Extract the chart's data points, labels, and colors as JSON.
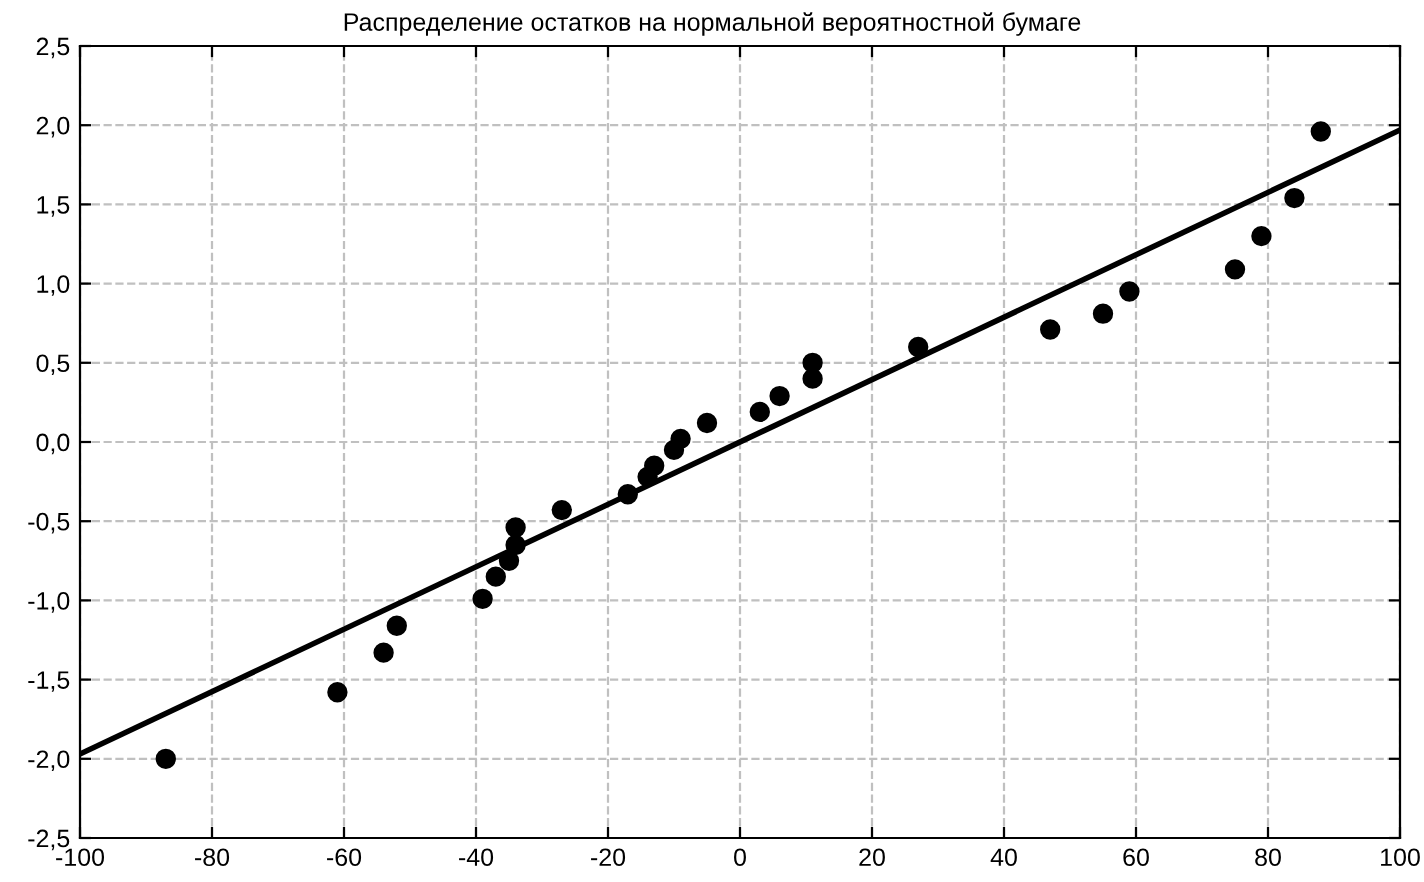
{
  "chart_data": {
    "type": "scatter",
    "title": "Распределение остатков на нормальной вероятностной бумаге",
    "series": [
      {
        "color": "#000000",
        "marker": "circle",
        "x": [
          -87,
          -61,
          -54,
          -52,
          -39,
          -37,
          -35,
          -34,
          -34,
          -27,
          -17,
          -14,
          -13,
          -10,
          -9,
          -5,
          3,
          6,
          11,
          11,
          27,
          47,
          55,
          59,
          75,
          79,
          84,
          88
        ],
        "values": [
          -2.0,
          -1.58,
          -1.33,
          -1.16,
          -0.99,
          -0.85,
          -0.75,
          -0.65,
          -0.54,
          -0.43,
          -0.33,
          -0.22,
          -0.15,
          -0.05,
          0.02,
          0.12,
          0.19,
          0.29,
          0.4,
          0.5,
          0.6,
          0.71,
          0.81,
          0.95,
          1.09,
          1.3,
          1.54,
          1.96
        ]
      },
      {
        "type": "line",
        "color": "#000000",
        "marker": "none",
        "line_style": "solid",
        "x": [
          -100,
          100
        ],
        "values": [
          -1.97,
          1.97
        ]
      }
    ],
    "xlim": [
      -100,
      100
    ],
    "ylim": [
      -2.5,
      2.5
    ],
    "xticks": [
      -100,
      -80,
      -60,
      -40,
      -20,
      0,
      20,
      40,
      60,
      80,
      100
    ],
    "yticks": [
      {
        "value": -2.5,
        "label": "-2,5"
      },
      {
        "value": -2.0,
        "label": "-2,0"
      },
      {
        "value": -1.5,
        "label": "-1,5"
      },
      {
        "value": -1.0,
        "label": "-1,0"
      },
      {
        "value": -0.5,
        "label": "-0,5"
      },
      {
        "value": 0.0,
        "label": "0,0"
      },
      {
        "value": 0.5,
        "label": "0,5"
      },
      {
        "value": 1.0,
        "label": "1,0"
      },
      {
        "value": 1.5,
        "label": "1,5"
      },
      {
        "value": 2.0,
        "label": "2,0"
      },
      {
        "value": 2.5,
        "label": "2,5"
      }
    ],
    "grid": true,
    "legend": false
  }
}
